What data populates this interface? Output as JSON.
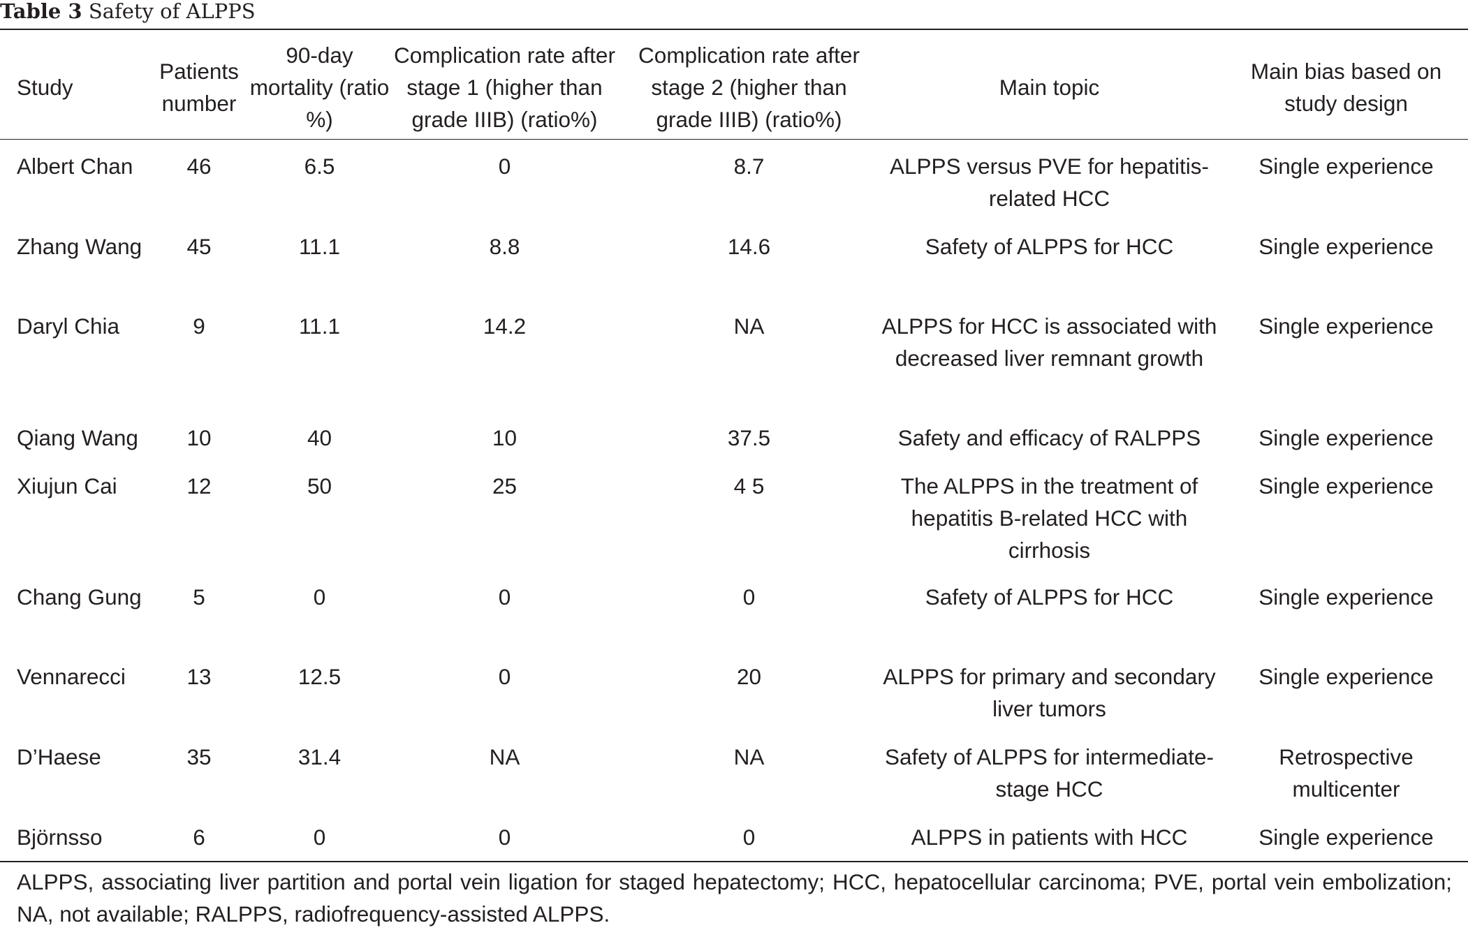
{
  "table": {
    "caption_label": "Table 3",
    "caption_text": "Safety of ALPPS",
    "headers": [
      "Study",
      "Patients number",
      "90-day mortality (ratio %)",
      "Complication rate after stage 1 (higher than grade IIIB) (ratio%)",
      "Complication rate after stage 2 (higher than grade IIIB) (ratio%)",
      "Main topic",
      "Main bias based on study design"
    ],
    "rows": [
      [
        "Albert Chan",
        "46",
        "6.5",
        "0",
        "8.7",
        "ALPPS versus PVE for hepatitis-related HCC",
        "Single experience"
      ],
      [
        "Zhang Wang",
        "45",
        "11.1",
        "8.8",
        "14.6",
        "Safety of ALPPS for HCC",
        "Single experience"
      ],
      [
        "Daryl Chia",
        "9",
        "11.1",
        "14.2",
        "NA",
        "ALPPS for HCC is associated with decreased liver remnant growth",
        "Single experience"
      ],
      [
        "Qiang Wang",
        "10",
        "40",
        "10",
        "37.5",
        "Safety and efficacy of RALPPS",
        "Single experience"
      ],
      [
        "Xiujun Cai",
        "12",
        "50",
        "25",
        "4 5",
        "The ALPPS in the treatment of hepatitis B-related HCC with cirrhosis",
        "Single experience"
      ],
      [
        "Chang Gung",
        "5",
        "0",
        "0",
        "0",
        "Safety of ALPPS for HCC",
        "Single experience"
      ],
      [
        "Vennarecci",
        "13",
        "12.5",
        "0",
        "20",
        "ALPPS for primary and secondary liver tumors",
        "Single experience"
      ],
      [
        "D’Haese",
        "35",
        "31.4",
        "NA",
        "NA",
        "Safety of ALPPS for intermediate-stage HCC",
        "Retrospective multicenter"
      ],
      [
        "Björnsso",
        "6",
        "0",
        "0",
        "0",
        "ALPPS in patients with HCC",
        "Single experience"
      ]
    ],
    "footnote": "ALPPS, associating liver partition and portal vein ligation for staged hepatectomy; HCC, hepatocellular carcinoma; PVE, portal vein embolization; NA, not available; RALPPS, radiofrequency-assisted ALPPS."
  }
}
